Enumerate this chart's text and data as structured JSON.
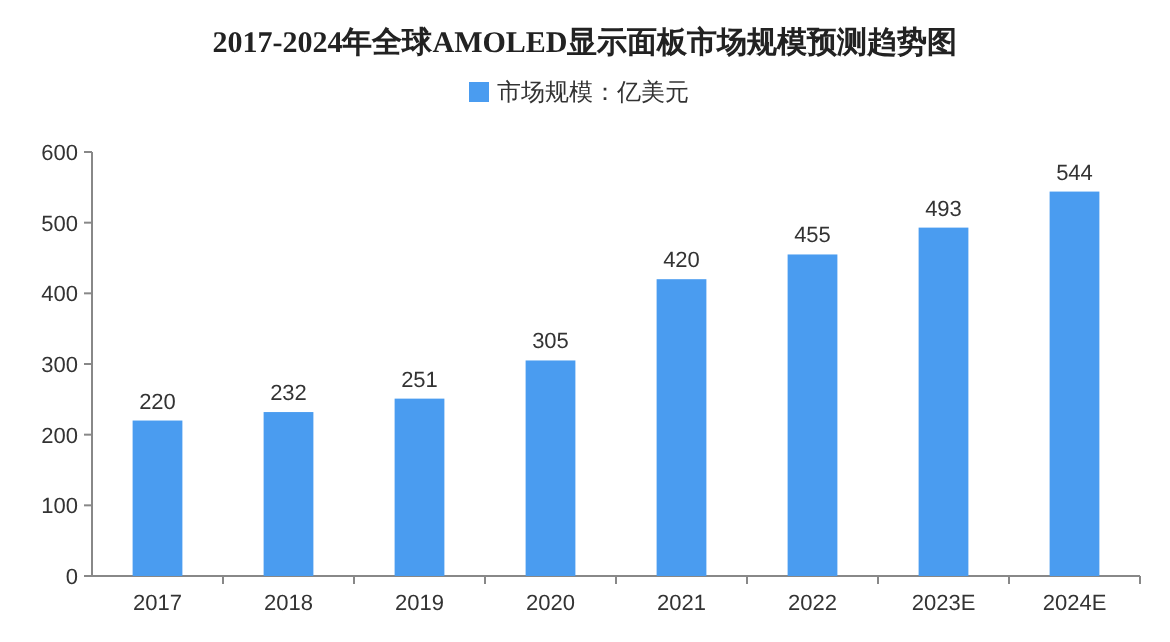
{
  "chart_data": {
    "type": "bar",
    "title": "2017-2024年全球AMOLED显示面板市场规模预测趋势图",
    "categories": [
      "2017",
      "2018",
      "2019",
      "2020",
      "2021",
      "2022",
      "2023E",
      "2024E"
    ],
    "series": [
      {
        "name": "市场规模：亿美元",
        "color": "#4a9cf0",
        "values": [
          220,
          232,
          251,
          305,
          420,
          455,
          493,
          544
        ]
      }
    ],
    "ylim": [
      0,
      600
    ],
    "yticks": [
      0,
      100,
      200,
      300,
      400,
      500,
      600
    ],
    "data_labels": true,
    "legend": "top"
  }
}
